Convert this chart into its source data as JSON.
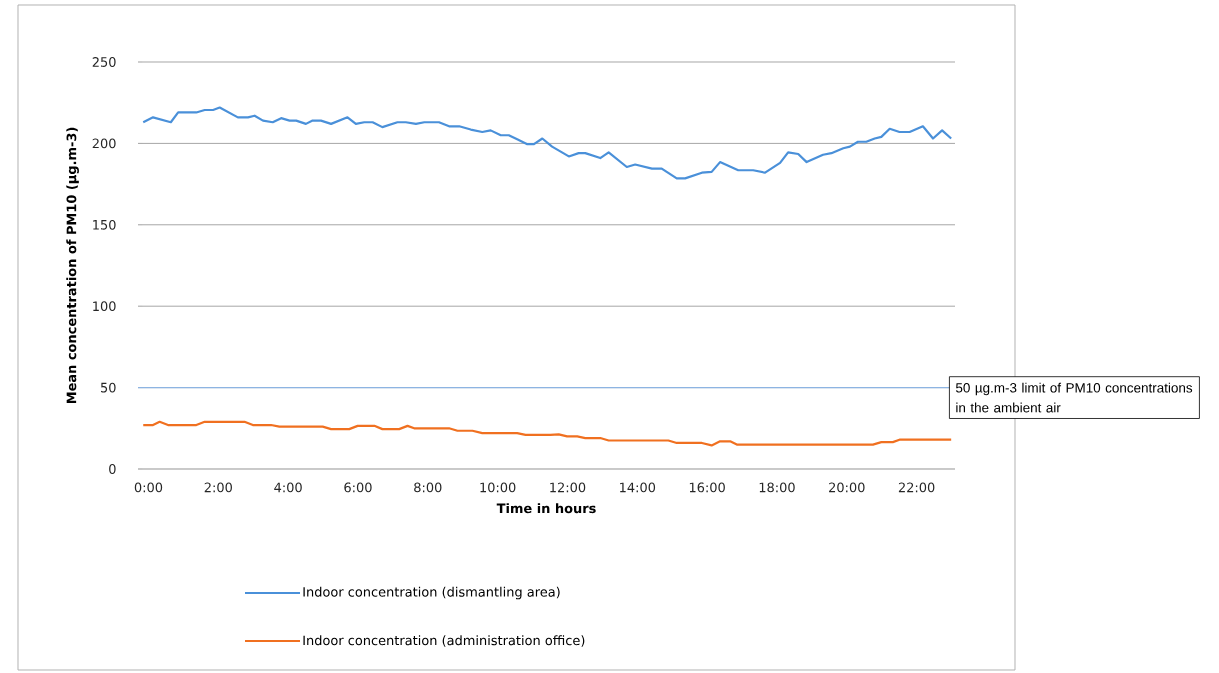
{
  "chart_data": {
    "type": "line",
    "xlabel": "Time in hours",
    "ylabel": "Mean concentration of PM10 (µg.m-3)",
    "xlim": [
      -0.3,
      23.1
    ],
    "ylim": [
      0,
      250
    ],
    "xticks": [
      {
        "value": 0,
        "label": "0:00"
      },
      {
        "value": 2,
        "label": "2:00"
      },
      {
        "value": 4,
        "label": "4:00"
      },
      {
        "value": 6,
        "label": "6:00"
      },
      {
        "value": 8,
        "label": "8:00"
      },
      {
        "value": 10,
        "label": "10:00"
      },
      {
        "value": 12,
        "label": "12:00"
      },
      {
        "value": 14,
        "label": "14:00"
      },
      {
        "value": 16,
        "label": "16:00"
      },
      {
        "value": 18,
        "label": "18:00"
      },
      {
        "value": 20,
        "label": "20:00"
      },
      {
        "value": 22,
        "label": "22:00"
      }
    ],
    "yticks": [
      0,
      50,
      100,
      150,
      200,
      250
    ],
    "grid": "y",
    "legend": "bottom",
    "marker": "none",
    "line_style": "solid",
    "ref_lines": [
      {
        "axis": "y",
        "value": 50,
        "label": "50 µg.m-3 limit of PM10 concentrations in the ambient air",
        "color": "#8db4e2"
      }
    ],
    "series": [
      {
        "name": "Indoor concentration (dismantling area)",
        "color": "#4a90d9",
        "x": [
          -0.15,
          0.13,
          0.64,
          0.85,
          1.37,
          1.61,
          1.85,
          2.04,
          2.56,
          2.85,
          3.04,
          3.28,
          3.56,
          3.8,
          4.04,
          4.23,
          4.51,
          4.7,
          4.94,
          5.23,
          5.7,
          5.94,
          6.18,
          6.42,
          6.7,
          7.13,
          7.37,
          7.66,
          7.9,
          8.32,
          8.61,
          8.9,
          9.23,
          9.56,
          9.8,
          10.09,
          10.32,
          10.56,
          10.85,
          11.04,
          11.28,
          11.56,
          12.04,
          12.32,
          12.51,
          12.94,
          13.18,
          13.7,
          13.94,
          14.42,
          14.7,
          15.13,
          15.37,
          15.85,
          16.13,
          16.37,
          16.89,
          17.32,
          17.66,
          18.09,
          18.32,
          18.61,
          18.85,
          19.32,
          19.56,
          19.9,
          20.09,
          20.32,
          20.56,
          20.8,
          20.99,
          21.23,
          21.51,
          21.8,
          22.18,
          22.47,
          22.73,
          22.99
        ],
        "values": [
          213,
          216,
          213,
          219,
          219,
          220.5,
          220.5,
          222,
          216,
          216,
          217,
          214,
          213,
          215.5,
          214,
          214,
          212,
          214,
          214,
          212,
          216,
          212,
          213,
          213,
          210,
          213,
          213,
          212,
          213,
          213,
          210.5,
          210.5,
          208.5,
          207,
          208,
          205,
          205,
          202.5,
          199.5,
          199.5,
          203,
          198,
          192,
          194,
          194,
          191,
          194.5,
          185.5,
          187,
          184.5,
          184.5,
          178.5,
          178.5,
          182,
          182.5,
          188.5,
          183.5,
          183.5,
          182,
          188,
          194.5,
          193.5,
          188.5,
          193,
          194,
          197,
          198,
          201,
          201,
          203,
          204,
          209,
          207,
          207,
          210.5,
          203,
          208,
          203
        ]
      },
      {
        "name": "Indoor concentration (administration  office)",
        "color": "#f07020",
        "x": [
          -0.15,
          0.13,
          0.32,
          0.56,
          1.37,
          1.61,
          2.75,
          2.99,
          3.51,
          3.75,
          4.99,
          5.23,
          5.75,
          5.99,
          6.47,
          6.7,
          7.18,
          7.42,
          7.61,
          8.61,
          8.85,
          9.28,
          9.56,
          10.56,
          10.8,
          11.51,
          11.75,
          11.99,
          12.28,
          12.51,
          12.94,
          13.18,
          14.89,
          15.13,
          15.85,
          16.13,
          16.37,
          16.66,
          16.85,
          20.75,
          20.99,
          21.32,
          21.51,
          22.99
        ],
        "values": [
          27,
          27,
          29,
          27,
          27,
          29,
          29,
          27,
          27,
          26,
          26,
          24.5,
          24.5,
          26.5,
          26.5,
          24.5,
          24.5,
          26.5,
          25,
          25,
          23.5,
          23.5,
          22,
          22,
          21,
          21,
          21.3,
          20,
          20,
          19,
          19,
          17.5,
          17.5,
          16,
          16,
          14.5,
          17,
          17,
          15,
          15,
          16.5,
          16.5,
          18,
          18
        ]
      }
    ]
  }
}
